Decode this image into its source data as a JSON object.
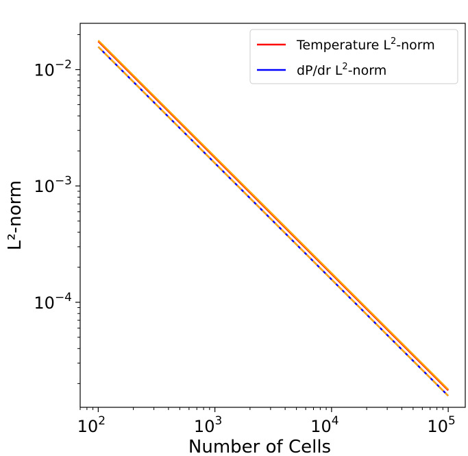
{
  "chart_data": {
    "type": "line",
    "xlabel": "Number of Cells",
    "ylabel": "L²-norm",
    "xscale": "log",
    "yscale": "log",
    "xlim": [
      70,
      140000
    ],
    "ylim": [
      1.25e-05,
      0.025
    ],
    "x_ticks": [
      {
        "value": 100,
        "base": "10",
        "exp": "2"
      },
      {
        "value": 1000,
        "base": "10",
        "exp": "3"
      },
      {
        "value": 10000,
        "base": "10",
        "exp": "4"
      },
      {
        "value": 100000,
        "base": "10",
        "exp": "5"
      }
    ],
    "y_ticks": [
      {
        "value": 0.01,
        "base": "10",
        "exp": "−2"
      },
      {
        "value": 0.001,
        "base": "10",
        "exp": "−3"
      },
      {
        "value": 0.0001,
        "base": "10",
        "exp": "−4"
      }
    ],
    "grid": false,
    "legend_position": "top-right",
    "series": [
      {
        "name": "Temperature L²-norm",
        "color": "#ff0000",
        "style": "solid",
        "x": [
          100,
          100000
        ],
        "y": [
          0.0175,
          1.75e-05
        ]
      },
      {
        "name": "",
        "color": "#ffa500",
        "style": "solid",
        "x": [
          100,
          100000
        ],
        "y": [
          0.0178,
          1.78e-05
        ]
      },
      {
        "name": "dP/dr L²-norm",
        "color": "#0000ff",
        "style": "solid",
        "x": [
          100,
          100000
        ],
        "y": [
          0.0157,
          1.57e-05
        ]
      },
      {
        "name": "",
        "color": "#ffa500",
        "style": "dashed",
        "x": [
          100,
          100000
        ],
        "y": [
          0.0157,
          1.57e-05
        ]
      }
    ],
    "legend": [
      {
        "label_main": "Temperature L",
        "label_sup": "2",
        "label_tail": "-norm",
        "color": "#ff0000"
      },
      {
        "label_main": "dP/dr L",
        "label_sup": "2",
        "label_tail": "-norm",
        "color": "#0000ff"
      }
    ]
  }
}
